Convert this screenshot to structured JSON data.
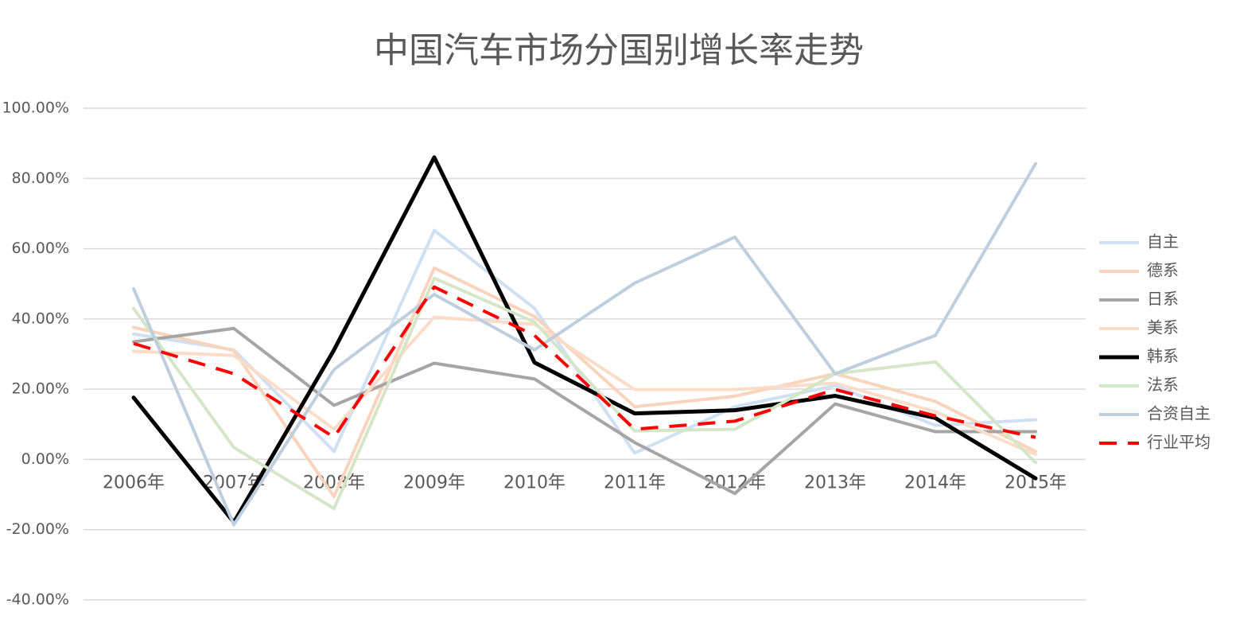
{
  "chart_data": {
    "type": "line",
    "title": "中国汽车市场分国别增长率走势",
    "categories": [
      "2006年",
      "2007年",
      "2008年",
      "2009年",
      "2010年",
      "2011年",
      "2012年",
      "2013年",
      "2014年",
      "2015年"
    ],
    "series": [
      {
        "name": "自主",
        "color": "#cfe0f2",
        "values": [
          35.7,
          31.2,
          2.3,
          65.2,
          43,
          1.8,
          15,
          21,
          9.7,
          11.3
        ]
      },
      {
        "name": "德系",
        "color": "#f9d3bb",
        "values": [
          37.6,
          31,
          -10.6,
          54.5,
          40.7,
          15,
          18,
          24.4,
          16.5,
          2.3
        ]
      },
      {
        "name": "日系",
        "color": "#a5a5a5",
        "values": [
          33.5,
          37.3,
          15.4,
          27.4,
          22.9,
          4.8,
          -9.7,
          15.8,
          7.9,
          7.9
        ]
      },
      {
        "name": "美系",
        "color": "#fbdcc8",
        "values": [
          30.8,
          29.6,
          8.6,
          40.5,
          38.5,
          19.9,
          19.9,
          21.7,
          13.6,
          1.4
        ]
      },
      {
        "name": "韩系",
        "color": "#000000",
        "values": [
          17.6,
          -17.9,
          31.2,
          86,
          27.6,
          13.1,
          14,
          18.1,
          11.8,
          -5.4
        ]
      },
      {
        "name": "法系",
        "color": "#d5e6c8",
        "values": [
          43,
          3.4,
          -14,
          51.6,
          39.1,
          8.1,
          8.6,
          24.4,
          27.8,
          -0.9
        ]
      },
      {
        "name": "合资自主",
        "color": "#bfcedd",
        "values": [
          48.6,
          -18.6,
          25.6,
          47,
          31.2,
          50.2,
          63.3,
          24.4,
          35.3,
          84.2
        ]
      },
      {
        "name": "行业平均",
        "color": "#ff0000",
        "dashed": true,
        "values": [
          33,
          24.4,
          6.3,
          49.1,
          35.3,
          8.6,
          10.9,
          19.9,
          12.4,
          6.3
        ]
      }
    ],
    "ylim": [
      -40,
      100
    ],
    "yticks": [
      {
        "value": -40,
        "label": "-40.00%"
      },
      {
        "value": -20,
        "label": "-20.00%"
      },
      {
        "value": 0,
        "label": "0.00%"
      },
      {
        "value": 20,
        "label": "20.00%"
      },
      {
        "value": 40,
        "label": "40.00%"
      },
      {
        "value": 60,
        "label": "60.00%"
      },
      {
        "value": 80,
        "label": "80.00%"
      },
      {
        "value": 100,
        "label": "100.00%"
      }
    ],
    "grid": true,
    "legend": "right"
  }
}
